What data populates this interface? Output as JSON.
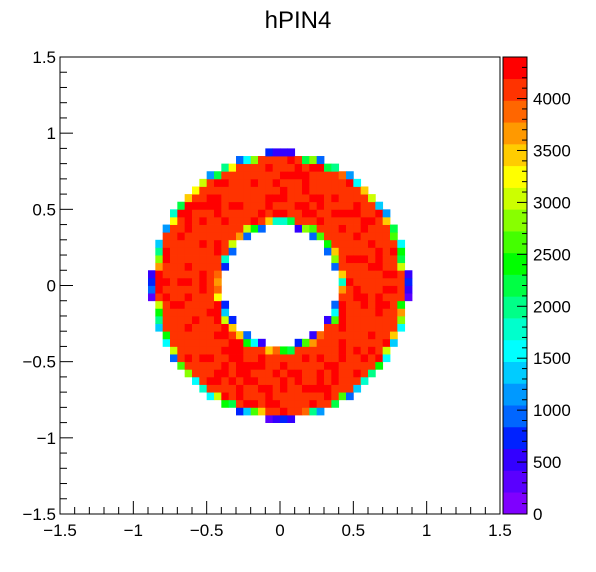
{
  "chart_data": {
    "type": "heatmap",
    "title": "hPIN4",
    "xlabel": "",
    "ylabel": "",
    "xlim": [
      -1.5,
      1.5
    ],
    "ylim": [
      -1.5,
      1.5
    ],
    "x_tick_labels": [
      "−1.5",
      "−1",
      "−0.5",
      "0",
      "0.5",
      "1",
      "1.5"
    ],
    "x_tick_values": [
      -1.5,
      -1,
      -0.5,
      0,
      0.5,
      1,
      1.5
    ],
    "y_tick_labels": [
      "−1.5",
      "−1",
      "−0.5",
      "0",
      "0.5",
      "1",
      "1.5"
    ],
    "y_tick_values": [
      -1.5,
      -1,
      -0.5,
      0,
      0.5,
      1,
      1.5
    ],
    "grid": false,
    "legend": "none",
    "bins": {
      "n": 60,
      "range": [
        -1.5,
        1.5
      ]
    },
    "ring": {
      "inner_radius": 0.41,
      "outer_radius": 0.86,
      "edge_width": 0.05,
      "plateau_value": 4150,
      "plateau_variation": 200
    },
    "z_range": [
      0,
      4400
    ],
    "colorbar": {
      "tick_labels": [
        "0",
        "500",
        "1000",
        "1500",
        "2000",
        "2500",
        "3000",
        "3500",
        "4000"
      ],
      "tick_values": [
        0,
        500,
        1000,
        1500,
        2000,
        2500,
        3000,
        3500,
        4000
      ],
      "palette": [
        "#7f00ff",
        "#5a00ff",
        "#3300ff",
        "#0022ff",
        "#0066ff",
        "#0099ff",
        "#00ccff",
        "#00ffff",
        "#00ffcc",
        "#00ff88",
        "#00ff44",
        "#00ff00",
        "#44ff00",
        "#88ff00",
        "#ccff00",
        "#ffff00",
        "#ffcc00",
        "#ff9900",
        "#ff6600",
        "#ff3300",
        "#ff0000"
      ]
    }
  }
}
